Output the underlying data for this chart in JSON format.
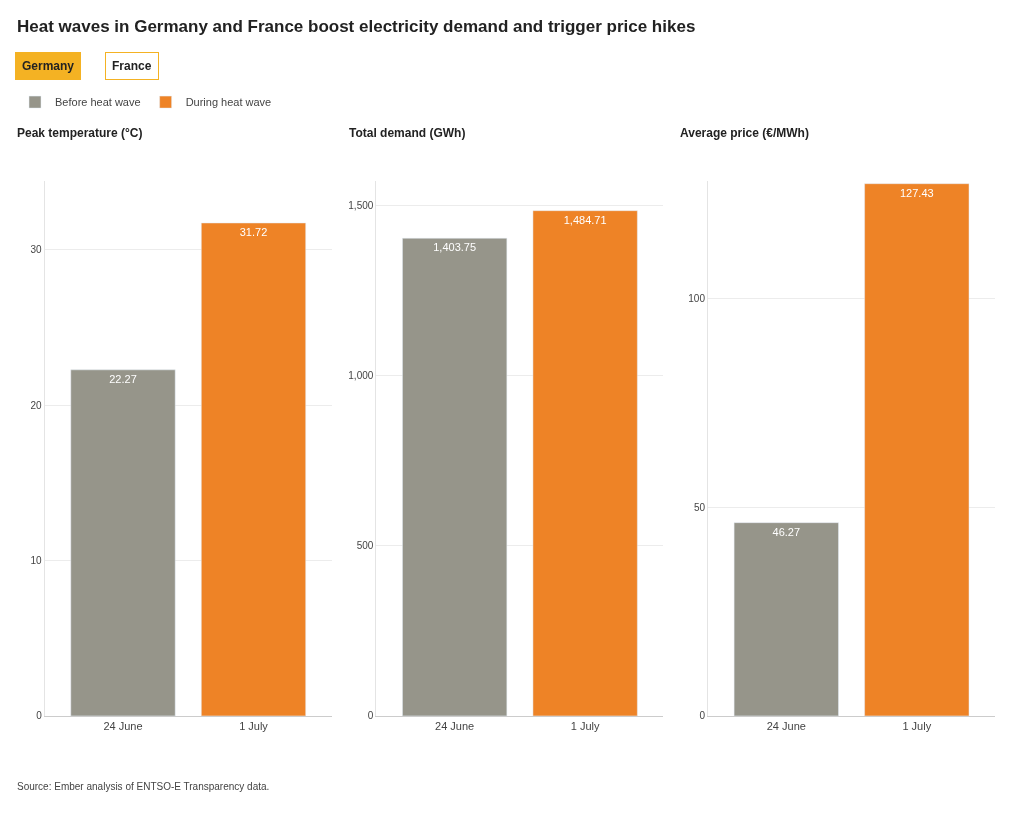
{
  "chart_data": [
    {
      "type": "bar",
      "title": "Heat waves in Germany and France boost electricity demand and trigger price hikes",
      "ylabel": "Peak temperature (°C)",
      "categories": [
        "24 June",
        "1 July"
      ],
      "series": [
        {
          "name": "Before heat wave",
          "color": "#96958a",
          "values": [
            22.27,
            null
          ],
          "value_labels": [
            "22.27",
            null
          ]
        },
        {
          "name": "During heat wave",
          "color": "#ee8326",
          "values": [
            null,
            31.72
          ],
          "value_labels": [
            null,
            "31.72"
          ]
        }
      ],
      "ylim": [
        0,
        34.4
      ],
      "yticks": [
        0,
        10,
        20,
        30
      ],
      "grid": "y",
      "legend": "top left",
      "annotations": [
        "Germany",
        "France",
        "Source: Ember analysis of ENTSO-E Transparency data."
      ]
    },
    {
      "type": "bar",
      "ylabel": "Total demand (GWh)",
      "categories": [
        "24 June",
        "1 July"
      ],
      "series": [
        {
          "color": "#96958a",
          "values": [
            1403.75,
            null
          ],
          "value_labels": [
            "1,403.75",
            null
          ]
        },
        {
          "color": "#ee8326",
          "values": [
            null,
            1484.71
          ],
          "value_labels": [
            null,
            "1,484.71"
          ]
        }
      ],
      "ylim": [
        0,
        1571
      ],
      "yticks": [
        0,
        {
          "value": 500,
          "label": "500"
        },
        {
          "value": 1000,
          "label": "1,000"
        },
        {
          "value": 1500,
          "label": "1,500"
        }
      ],
      "grid": "y"
    },
    {
      "type": "bar",
      "ylabel": "Average price (€/MWh)",
      "categories": [
        "24 June",
        "1 July"
      ],
      "series": [
        {
          "color": "#96958a",
          "values": [
            46.27,
            null
          ],
          "value_labels": [
            "46.27",
            null
          ]
        },
        {
          "color": "#ee8326",
          "values": [
            null,
            127.43
          ],
          "value_labels": [
            null,
            "127.43"
          ]
        }
      ],
      "ylim": [
        0,
        128
      ],
      "yticks": [
        0,
        50,
        100
      ],
      "grid": "y"
    }
  ]
}
